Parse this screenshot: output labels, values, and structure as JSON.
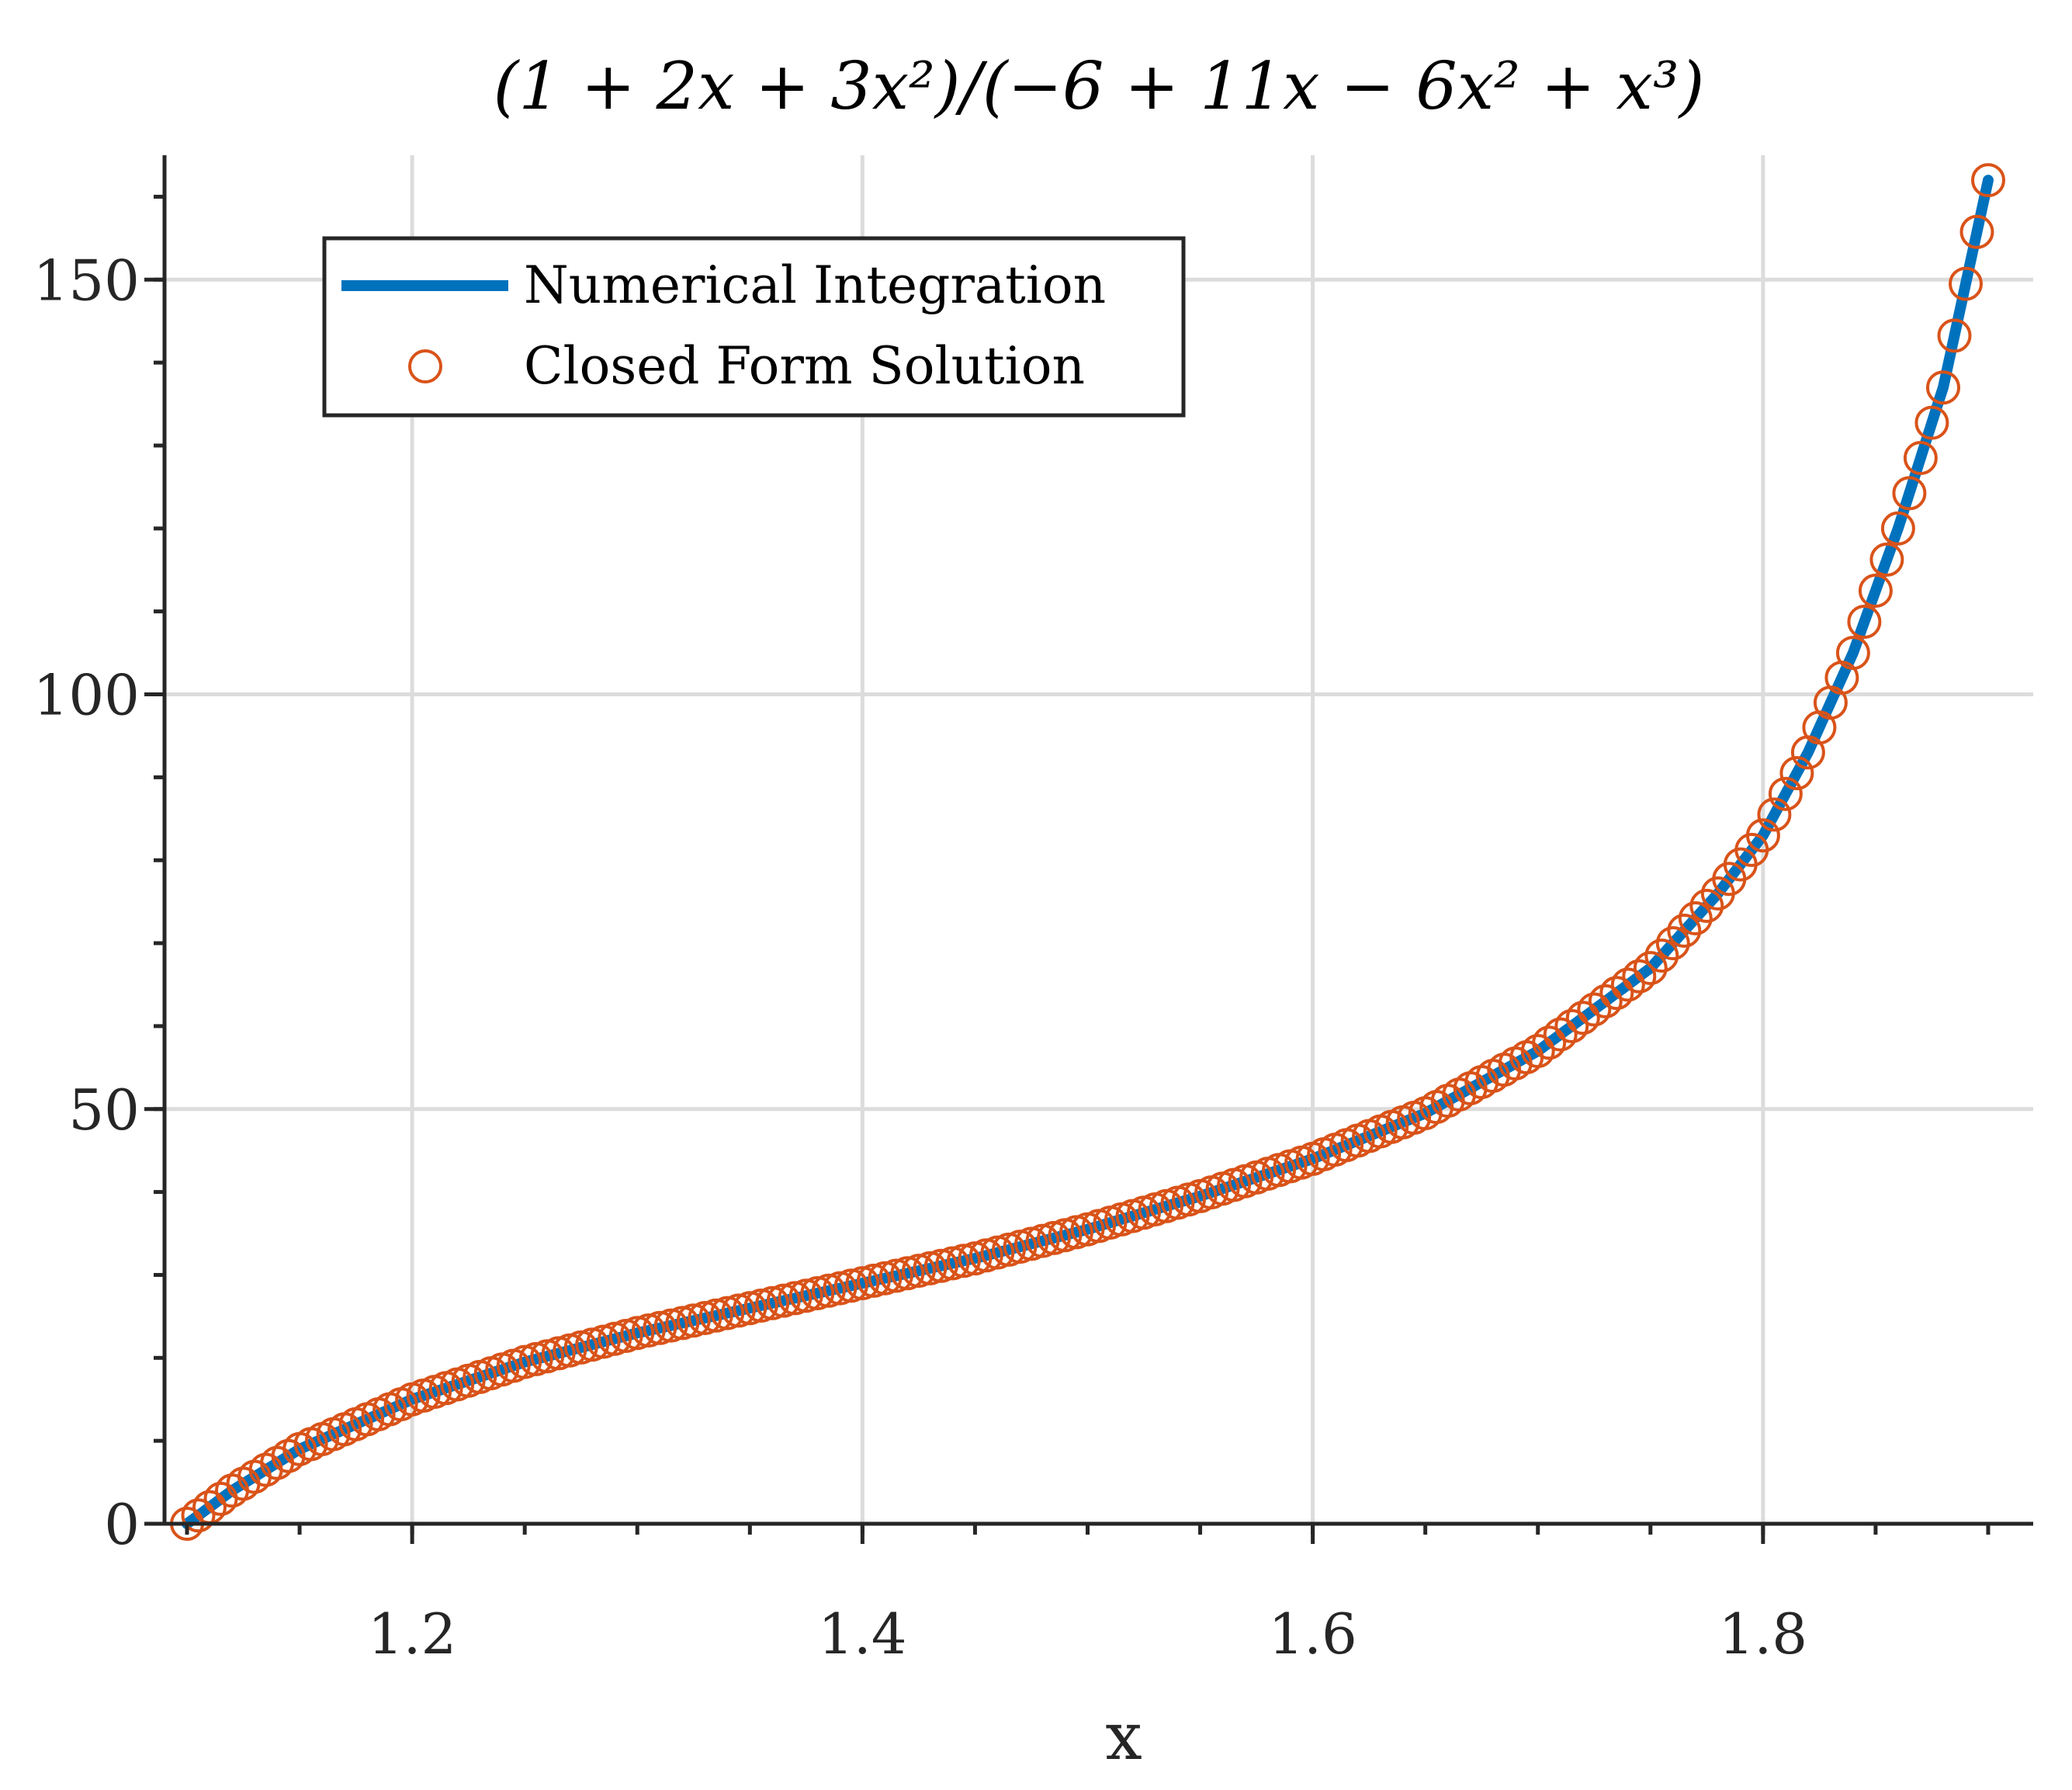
{
  "chart_data": {
    "type": "line",
    "title": "(1 + 2x + 3x²)/(−6 + 11x − 6x² + x³)",
    "xlabel": "x",
    "ylabel": "",
    "xlim": [
      1.09,
      1.92
    ],
    "ylim": [
      0,
      165
    ],
    "x_ticks": [
      1.2,
      1.4,
      1.6,
      1.8
    ],
    "x_tick_labels": [
      "1.2",
      "1.4",
      "1.6",
      "1.8"
    ],
    "x_minor_step": 0.05,
    "y_ticks": [
      0,
      50,
      100,
      150
    ],
    "y_tick_labels": [
      "0",
      "50",
      "100",
      "150"
    ],
    "y_minor_step": 10,
    "grid": true,
    "legend_position": "top-left",
    "series": [
      {
        "name": "Numerical Integration",
        "style": "line",
        "color": "#0072bd",
        "x": [
          1.1,
          1.12,
          1.15,
          1.2,
          1.25,
          1.3,
          1.35,
          1.4,
          1.45,
          1.5,
          1.55,
          1.6,
          1.65,
          1.7,
          1.75,
          1.78,
          1.8,
          1.82,
          1.84,
          1.86,
          1.88,
          1.9
        ],
        "values": [
          0,
          4,
          9,
          15,
          19.5,
          23,
          26,
          29,
          32,
          35.5,
          39.5,
          44,
          49.5,
          57,
          67,
          76,
          83,
          93,
          105,
          120,
          137,
          162
        ]
      },
      {
        "name": "Closed Form Solution",
        "style": "marker-circle",
        "color": "#d95319",
        "x": [
          1.1,
          1.12,
          1.15,
          1.2,
          1.25,
          1.3,
          1.35,
          1.4,
          1.45,
          1.5,
          1.55,
          1.6,
          1.65,
          1.7,
          1.75,
          1.78,
          1.8,
          1.82,
          1.84,
          1.86,
          1.88,
          1.9
        ],
        "values": [
          0,
          4,
          9,
          15,
          19.5,
          23,
          26,
          29,
          32,
          35.5,
          39.5,
          44,
          49.5,
          57,
          67,
          76,
          83,
          93,
          105,
          120,
          137,
          162
        ]
      }
    ],
    "marker_x_step": 0.005
  },
  "legend": {
    "items": [
      {
        "label": "Numerical Integration"
      },
      {
        "label": "Closed Form Solution"
      }
    ]
  }
}
